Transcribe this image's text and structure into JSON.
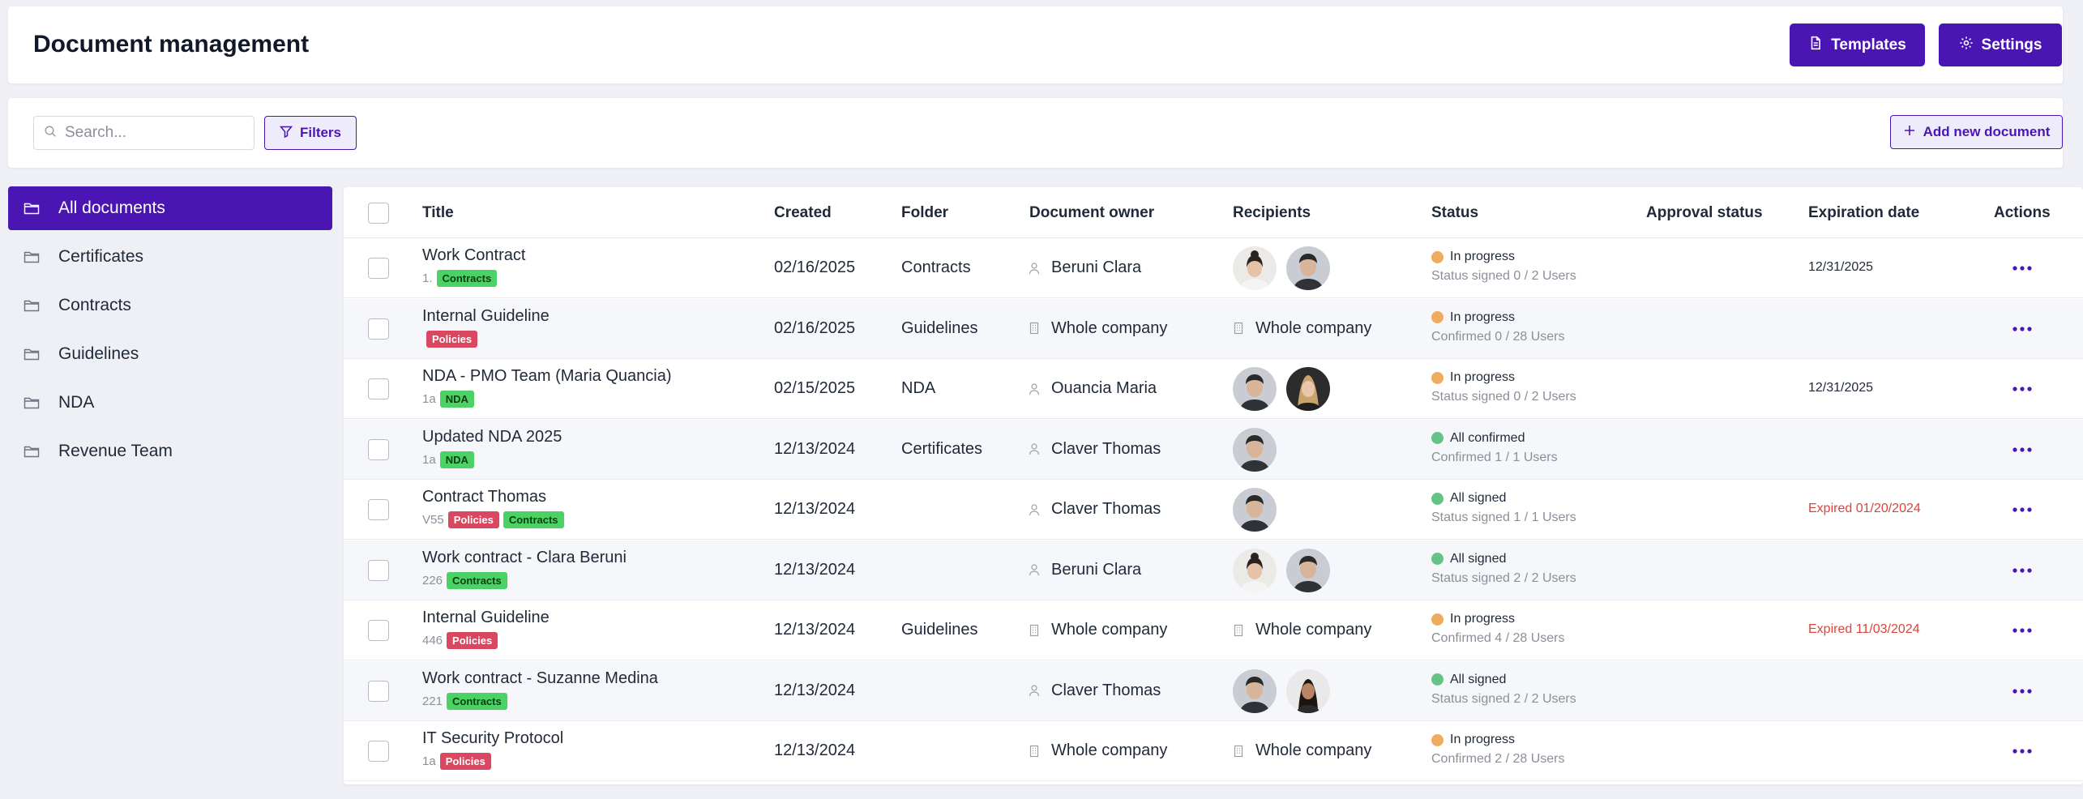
{
  "header": {
    "title": "Document management",
    "templates_label": "Templates",
    "settings_label": "Settings"
  },
  "toolbar": {
    "search_placeholder": "Search...",
    "filters_label": "Filters",
    "add_label": "Add new document"
  },
  "sidebar": {
    "items": [
      {
        "label": "All documents",
        "active": true
      },
      {
        "label": "Certificates"
      },
      {
        "label": "Contracts"
      },
      {
        "label": "Guidelines"
      },
      {
        "label": "NDA"
      },
      {
        "label": "Revenue Team"
      }
    ]
  },
  "table": {
    "columns": [
      "Title",
      "Created",
      "Folder",
      "Document owner",
      "Recipients",
      "Status",
      "Approval status",
      "Expiration date",
      "Actions"
    ],
    "rows": [
      {
        "title": "Work Contract",
        "version": "1.",
        "tags": [
          "Contracts"
        ],
        "created": "02/16/2025",
        "folder": "Contracts",
        "owner": "Beruni Clara",
        "owner_type": "user",
        "recipients": [
          "avatar-woman-1",
          "avatar-man"
        ],
        "status": "In progress",
        "status_color": "#efab5e",
        "status_detail": "Status signed 0 / 2 Users",
        "expiration": "12/31/2025",
        "expired": false
      },
      {
        "title": "Internal Guideline",
        "version": "",
        "tags": [
          "Policies"
        ],
        "created": "02/16/2025",
        "folder": "Guidelines",
        "owner": "Whole company",
        "owner_type": "company",
        "recipients_text": "Whole company",
        "status": "In progress",
        "status_color": "#efab5e",
        "status_detail": "Confirmed 0 / 28 Users",
        "expiration": "",
        "expired": false
      },
      {
        "title": "NDA - PMO Team (Maria Quancia)",
        "version": "1a",
        "tags": [
          "NDA"
        ],
        "created": "02/15/2025",
        "folder": "NDA",
        "owner": "Ouancia Maria",
        "owner_type": "user",
        "recipients": [
          "avatar-man",
          "avatar-woman-2"
        ],
        "status": "In progress",
        "status_color": "#efab5e",
        "status_detail": "Status signed 0 / 2 Users",
        "expiration": "12/31/2025",
        "expired": false
      },
      {
        "title": "Updated NDA 2025",
        "version": "1a",
        "tags": [
          "NDA"
        ],
        "created": "12/13/2024",
        "folder": "Certificates",
        "owner": "Claver Thomas",
        "owner_type": "user",
        "recipients": [
          "avatar-man"
        ],
        "status": "All confirmed",
        "status_color": "#66c387",
        "status_detail": "Confirmed 1 / 1 Users",
        "expiration": "",
        "expired": false
      },
      {
        "title": "Contract Thomas",
        "version": "V55",
        "tags": [
          "Policies",
          "Contracts"
        ],
        "created": "12/13/2024",
        "folder": "",
        "owner": "Claver Thomas",
        "owner_type": "user",
        "recipients": [
          "avatar-man"
        ],
        "status": "All signed",
        "status_color": "#66c387",
        "status_detail": "Status signed 1 / 1 Users",
        "expiration": "Expired 01/20/2024",
        "expired": true
      },
      {
        "title": "Work contract - Clara Beruni",
        "version": "226",
        "tags": [
          "Contracts"
        ],
        "created": "12/13/2024",
        "folder": "",
        "owner": "Beruni Clara",
        "owner_type": "user",
        "recipients": [
          "avatar-woman-1",
          "avatar-man"
        ],
        "status": "All signed",
        "status_color": "#66c387",
        "status_detail": "Status signed 2 / 2 Users",
        "expiration": "",
        "expired": false
      },
      {
        "title": "Internal Guideline",
        "version": "446",
        "tags": [
          "Policies"
        ],
        "created": "12/13/2024",
        "folder": "Guidelines",
        "owner": "Whole company",
        "owner_type": "company",
        "recipients_text": "Whole company",
        "status": "In progress",
        "status_color": "#efab5e",
        "status_detail": "Confirmed 4 / 28 Users",
        "expiration": "Expired 11/03/2024",
        "expired": true
      },
      {
        "title": "Work contract - Suzanne Medina",
        "version": "221",
        "tags": [
          "Contracts"
        ],
        "created": "12/13/2024",
        "folder": "",
        "owner": "Claver Thomas",
        "owner_type": "user",
        "recipients": [
          "avatar-man",
          "avatar-woman-3"
        ],
        "status": "All signed",
        "status_color": "#66c387",
        "status_detail": "Status signed 2 / 2 Users",
        "expiration": "",
        "expired": false
      },
      {
        "title": "IT Security Protocol",
        "version": "1a",
        "tags": [
          "Policies"
        ],
        "created": "12/13/2024",
        "folder": "",
        "owner": "Whole company",
        "owner_type": "company",
        "recipients_text": "Whole company",
        "status": "In progress",
        "status_color": "#efab5e",
        "status_detail": "Confirmed 2 / 28 Users",
        "expiration": "",
        "expired": false
      }
    ]
  },
  "colors": {
    "accent": "#4a15b2",
    "in_progress": "#efab5e",
    "done": "#66c387",
    "expired": "#d9453c",
    "tag_contracts": "#4cd264",
    "tag_policies": "#d94860"
  }
}
